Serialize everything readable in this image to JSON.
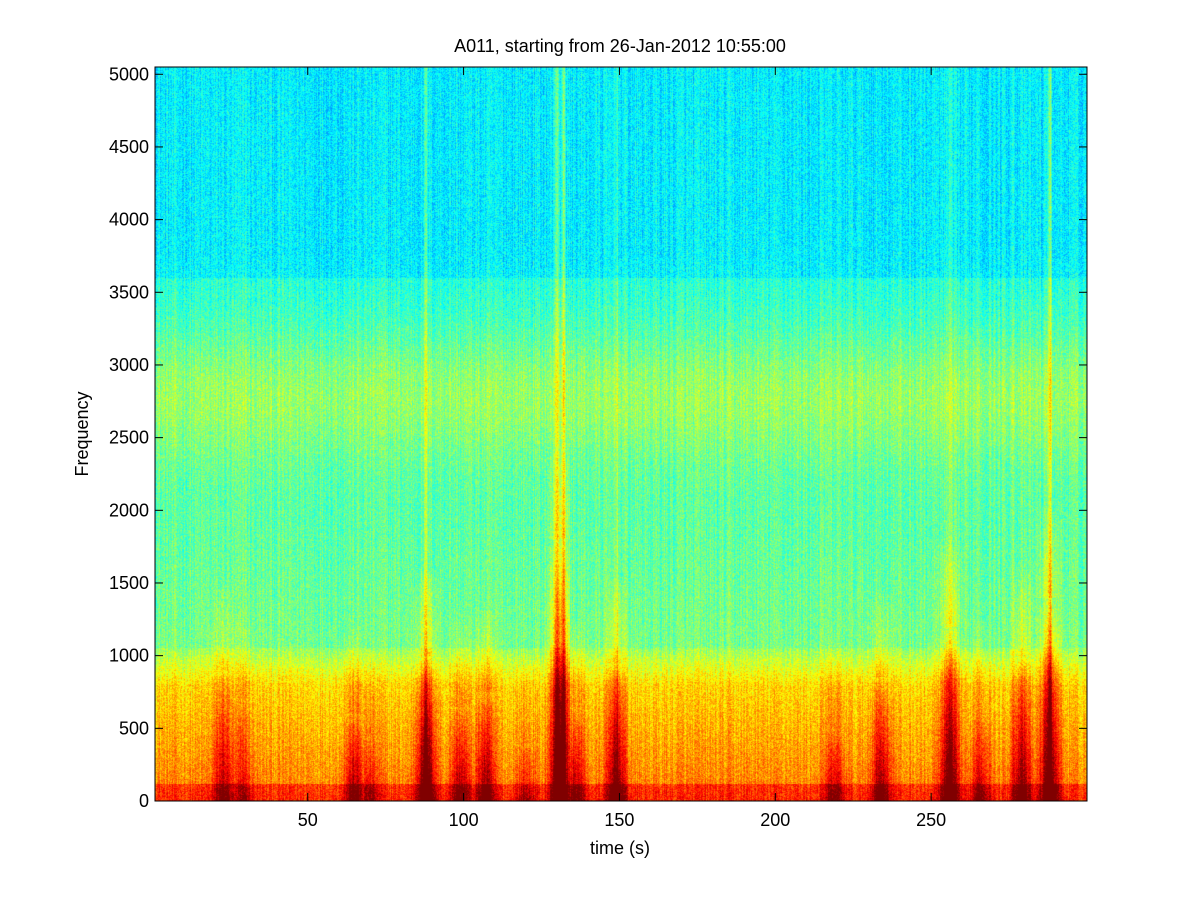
{
  "chart_data": {
    "type": "heatmap",
    "title": "A011, starting from 26-Jan-2012 10:55:00",
    "xlabel": "time (s)",
    "ylabel": "Frequency",
    "xlim": [
      1,
      300
    ],
    "ylim": [
      0,
      5050
    ],
    "xticks": [
      50,
      100,
      150,
      200,
      250
    ],
    "yticks": [
      0,
      500,
      1000,
      1500,
      2000,
      2500,
      3000,
      3500,
      4000,
      4500,
      5000
    ],
    "colormap": "jet",
    "colors": {
      "background_band": "#33e8c8",
      "mid_band": "#a8f060",
      "low_band": "#f4f000",
      "hot": "#e81010"
    },
    "intensity_model": {
      "description_of_bands": "bright yellow energy below ~800 Hz, yellow-green haze around 2500-3200 Hz, cyan elsewhere",
      "low_band_top_hz": 800,
      "mid_band_center_hz": 2800
    },
    "events": [
      {
        "t": 23,
        "strength": 0.55,
        "max_freq": 900
      },
      {
        "t": 29,
        "strength": 0.35,
        "max_freq": 700
      },
      {
        "t": 65,
        "strength": 0.6,
        "max_freq": 600
      },
      {
        "t": 70,
        "strength": 0.4,
        "max_freq": 450
      },
      {
        "t": 88,
        "strength": 0.9,
        "max_freq": 1000
      },
      {
        "t": 99,
        "strength": 0.6,
        "max_freq": 650
      },
      {
        "t": 107,
        "strength": 0.65,
        "max_freq": 750
      },
      {
        "t": 120,
        "strength": 0.35,
        "max_freq": 400
      },
      {
        "t": 131,
        "strength": 1.0,
        "max_freq": 1800
      },
      {
        "t": 136,
        "strength": 0.55,
        "max_freq": 650
      },
      {
        "t": 149,
        "strength": 0.75,
        "max_freq": 950
      },
      {
        "t": 219,
        "strength": 0.5,
        "max_freq": 500
      },
      {
        "t": 234,
        "strength": 0.65,
        "max_freq": 850
      },
      {
        "t": 256,
        "strength": 0.8,
        "max_freq": 1200
      },
      {
        "t": 266,
        "strength": 0.5,
        "max_freq": 650
      },
      {
        "t": 279,
        "strength": 0.7,
        "max_freq": 1000
      },
      {
        "t": 288,
        "strength": 0.85,
        "max_freq": 1400
      }
    ],
    "vertical_streaks": [
      {
        "t": 88,
        "strength": 0.4
      },
      {
        "t": 130,
        "strength": 0.7
      },
      {
        "t": 132,
        "strength": 0.6
      },
      {
        "t": 149,
        "strength": 0.35
      },
      {
        "t": 288,
        "strength": 0.7
      },
      {
        "t": 30,
        "strength": 0.15
      },
      {
        "t": 256,
        "strength": 0.25
      },
      {
        "t": 265,
        "strength": 0.2
      },
      {
        "t": 276,
        "strength": 0.2
      }
    ]
  }
}
